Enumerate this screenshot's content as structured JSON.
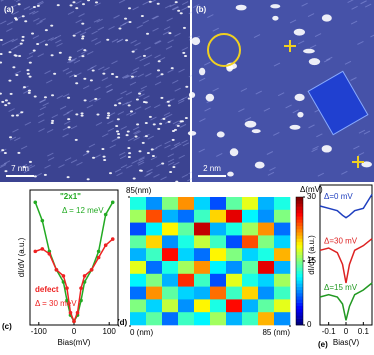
{
  "images": [
    {
      "label": "(a)",
      "scale_bar": "7 nm"
    },
    {
      "label": "(b)",
      "scale_bar": "2 nm"
    }
  ],
  "chart_data": [
    {
      "type": "line",
      "label": "(c)",
      "xlabel": "Bias(mV)",
      "ylabel": "dI/dV (a.u.)",
      "x": [
        -110,
        -90,
        -70,
        -50,
        -30,
        -20,
        -10,
        0,
        10,
        20,
        30,
        50,
        70,
        90,
        110
      ],
      "xlim": [
        -125,
        125
      ],
      "xticks": [
        -100,
        0,
        100
      ],
      "ylim": [
        0,
        1.1
      ],
      "series": [
        {
          "name": "\"2x1\"",
          "note": "Δ = 12 meV",
          "color": "#22aa22",
          "values": [
            1.0,
            0.85,
            0.6,
            0.45,
            0.35,
            0.2,
            0.08,
            0.03,
            0.08,
            0.2,
            0.35,
            0.45,
            0.6,
            0.9,
            1.0
          ]
        },
        {
          "name": "defect",
          "note": "Δ = 30 meV",
          "color": "#ee2222",
          "values": [
            0.6,
            0.62,
            0.58,
            0.45,
            0.4,
            0.3,
            0.1,
            0.03,
            0.1,
            0.3,
            0.4,
            0.45,
            0.55,
            0.65,
            0.7
          ]
        }
      ]
    },
    {
      "type": "heatmap",
      "label": "(d)",
      "xlim": [
        0,
        85
      ],
      "xticks": [
        {
          "value": 0,
          "label": "0 (nm)"
        },
        {
          "value": 85,
          "label": "85 (nm)"
        }
      ],
      "ylim": [
        0,
        85
      ],
      "yticks": [
        {
          "value": 85,
          "label": "85(nm)"
        }
      ],
      "colorbar_label": "Δ(mV)",
      "clim": [
        0,
        30
      ],
      "cticks": [
        0,
        15,
        30
      ],
      "z": [
        [
          12,
          8,
          15,
          22,
          10,
          6,
          14,
          18,
          9,
          12
        ],
        [
          16,
          24,
          9,
          7,
          13,
          20,
          27,
          11,
          8,
          15
        ],
        [
          6,
          11,
          19,
          14,
          28,
          9,
          12,
          16,
          22,
          7
        ],
        [
          14,
          20,
          8,
          12,
          17,
          13,
          6,
          24,
          15,
          10
        ],
        [
          9,
          13,
          26,
          10,
          7,
          19,
          15,
          10,
          12,
          21
        ],
        [
          18,
          7,
          12,
          16,
          22,
          11,
          8,
          14,
          27,
          9
        ],
        [
          11,
          15,
          9,
          25,
          13,
          6,
          18,
          12,
          10,
          16
        ],
        [
          7,
          22,
          14,
          10,
          9,
          23,
          13,
          20,
          8,
          13
        ],
        [
          15,
          10,
          17,
          8,
          19,
          12,
          26,
          9,
          14,
          18
        ],
        [
          10,
          14,
          7,
          13,
          11,
          16,
          9,
          13,
          21,
          8
        ]
      ]
    },
    {
      "type": "line",
      "label": "(e)",
      "xlabel": "Bias(V)",
      "ylabel": "dI/dV (a.u.)",
      "x": [
        -0.15,
        -0.1,
        -0.05,
        -0.02,
        0,
        0.02,
        0.05,
        0.1,
        0.15
      ],
      "xlim": [
        -0.15,
        0.15
      ],
      "xticks": [
        -0.1,
        0,
        0.1
      ],
      "ylim": [
        0,
        3
      ],
      "series": [
        {
          "name": "Δ=0 mV",
          "color": "#1f3fbf",
          "values": [
            2.55,
            2.5,
            2.45,
            2.35,
            2.3,
            2.35,
            2.45,
            2.5,
            2.8
          ]
        },
        {
          "name": "Δ=30 mV",
          "color": "#dd2222",
          "values": [
            1.6,
            1.65,
            1.55,
            1.3,
            0.9,
            1.3,
            1.6,
            1.7,
            1.85
          ]
        },
        {
          "name": "Δ=15 mV",
          "color": "#229922",
          "values": [
            0.6,
            0.65,
            0.6,
            0.45,
            0.1,
            0.4,
            0.65,
            0.75,
            0.9
          ]
        }
      ]
    }
  ]
}
